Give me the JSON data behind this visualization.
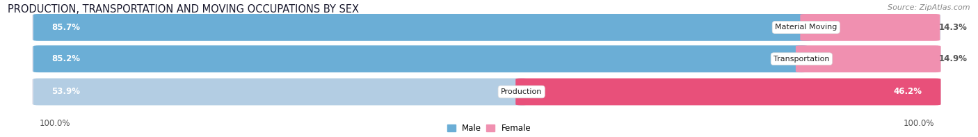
{
  "title": "PRODUCTION, TRANSPORTATION AND MOVING OCCUPATIONS BY SEX",
  "source": "Source: ZipAtlas.com",
  "categories": [
    "Material Moving",
    "Transportation",
    "Production"
  ],
  "male_values": [
    85.7,
    85.2,
    53.9
  ],
  "female_values": [
    14.3,
    14.9,
    46.2
  ],
  "male_color_strong": "#6baed6",
  "male_color_light": "#b3cde3",
  "female_color_strong": "#f090b0",
  "female_color_light": "#f4b8cc",
  "female_color_prod": "#e8507a",
  "bg_color": "#ffffff",
  "bar_bg_color": "#e8e8f0",
  "label_100_left": "100.0%",
  "label_100_right": "100.0%",
  "title_fontsize": 10.5,
  "source_fontsize": 8,
  "bar_label_fontsize": 8.5,
  "category_fontsize": 8,
  "legend_fontsize": 8.5
}
